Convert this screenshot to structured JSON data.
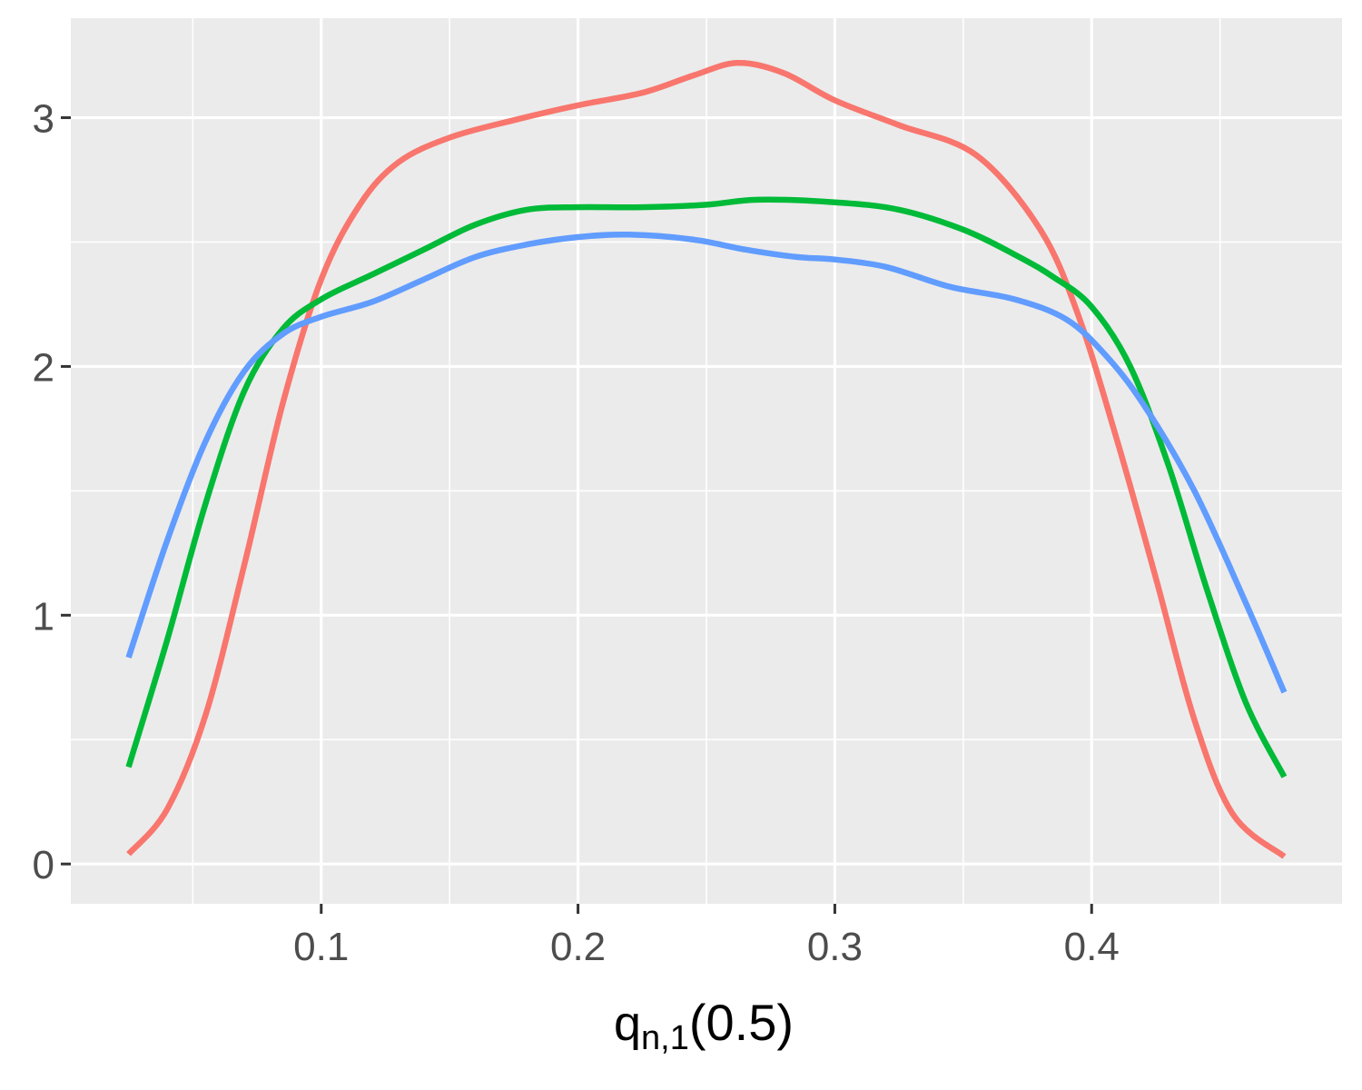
{
  "chart_data": {
    "type": "line",
    "title": "",
    "xlabel": {
      "base": "q",
      "subscript": "n,1",
      "argument": "(0.5)"
    },
    "ylabel": "",
    "xlim": [
      0.0025,
      0.4975
    ],
    "ylim": [
      -0.16,
      3.4
    ],
    "x_ticks": [
      0.1,
      0.2,
      0.3,
      0.4
    ],
    "x_tick_labels": [
      "0.1",
      "0.2",
      "0.3",
      "0.4"
    ],
    "y_ticks": [
      0,
      1,
      2,
      3
    ],
    "y_tick_labels": [
      "0",
      "1",
      "2",
      "3"
    ],
    "grid": true,
    "legend": "none",
    "colors": {
      "panel_background": "#EBEBEB",
      "grid_line": "#FFFFFF",
      "tick_mark": "#333333"
    },
    "series": [
      {
        "color": "#F8766D",
        "x": [
          0.025,
          0.04,
          0.055,
          0.07,
          0.085,
          0.1,
          0.115,
          0.13,
          0.15,
          0.175,
          0.2,
          0.225,
          0.245,
          0.262,
          0.28,
          0.3,
          0.325,
          0.355,
          0.38,
          0.395,
          0.41,
          0.425,
          0.44,
          0.455,
          0.475
        ],
        "y": [
          0.04,
          0.22,
          0.6,
          1.2,
          1.85,
          2.35,
          2.65,
          2.82,
          2.92,
          2.99,
          3.05,
          3.1,
          3.17,
          3.22,
          3.18,
          3.07,
          2.97,
          2.85,
          2.55,
          2.2,
          1.7,
          1.15,
          0.58,
          0.2,
          0.03
        ]
      },
      {
        "color": "#00BA38",
        "x": [
          0.025,
          0.04,
          0.055,
          0.07,
          0.085,
          0.1,
          0.12,
          0.14,
          0.16,
          0.18,
          0.2,
          0.225,
          0.25,
          0.27,
          0.3,
          0.325,
          0.35,
          0.37,
          0.385,
          0.4,
          0.415,
          0.43,
          0.445,
          0.46,
          0.475
        ],
        "y": [
          0.39,
          0.9,
          1.45,
          1.9,
          2.15,
          2.27,
          2.37,
          2.47,
          2.57,
          2.63,
          2.64,
          2.64,
          2.65,
          2.67,
          2.66,
          2.63,
          2.55,
          2.45,
          2.36,
          2.24,
          2.0,
          1.6,
          1.1,
          0.65,
          0.35
        ]
      },
      {
        "color": "#619CFF",
        "x": [
          0.025,
          0.04,
          0.055,
          0.07,
          0.085,
          0.1,
          0.12,
          0.14,
          0.16,
          0.18,
          0.2,
          0.22,
          0.245,
          0.265,
          0.285,
          0.3,
          0.32,
          0.345,
          0.37,
          0.39,
          0.405,
          0.42,
          0.44,
          0.46,
          0.475
        ],
        "y": [
          0.83,
          1.3,
          1.7,
          1.98,
          2.13,
          2.2,
          2.26,
          2.35,
          2.44,
          2.49,
          2.52,
          2.53,
          2.51,
          2.47,
          2.44,
          2.43,
          2.4,
          2.32,
          2.27,
          2.19,
          2.05,
          1.85,
          1.5,
          1.05,
          0.69
        ]
      }
    ]
  }
}
